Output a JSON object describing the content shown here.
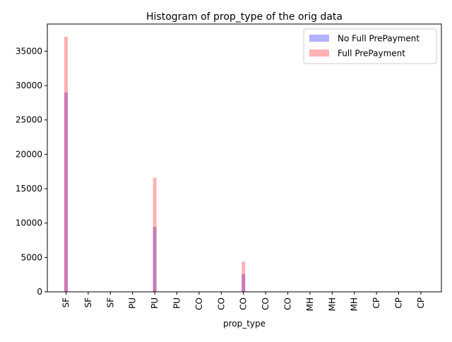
{
  "chart_data": {
    "type": "bar",
    "title": "Histogram of prop_type of the orig data",
    "xlabel": "prop_type",
    "ylabel": "",
    "ylim": [
      0,
      38950
    ],
    "yticks": [
      0,
      5000,
      10000,
      15000,
      20000,
      25000,
      30000,
      35000
    ],
    "categories": [
      "SF",
      "SF",
      "SF",
      "PU",
      "PU",
      "PU",
      "CO",
      "CO",
      "CO",
      "CO",
      "CO",
      "MH",
      "MH",
      "MH",
      "CP",
      "CP",
      "CP"
    ],
    "series": [
      {
        "name": "No Full PrePayment",
        "color": "#0000ff",
        "opacity": 0.3,
        "values": [
          29000,
          0,
          0,
          0,
          9450,
          0,
          0,
          0,
          2600,
          0,
          0,
          0,
          40,
          0,
          0,
          0,
          20
        ]
      },
      {
        "name": "Full PrePayment",
        "color": "#ff0000",
        "opacity": 0.3,
        "values": [
          37100,
          0,
          0,
          0,
          16600,
          0,
          0,
          0,
          4400,
          0,
          0,
          0,
          90,
          0,
          0,
          0,
          40
        ]
      }
    ],
    "legend": "top-right",
    "grid": false
  }
}
